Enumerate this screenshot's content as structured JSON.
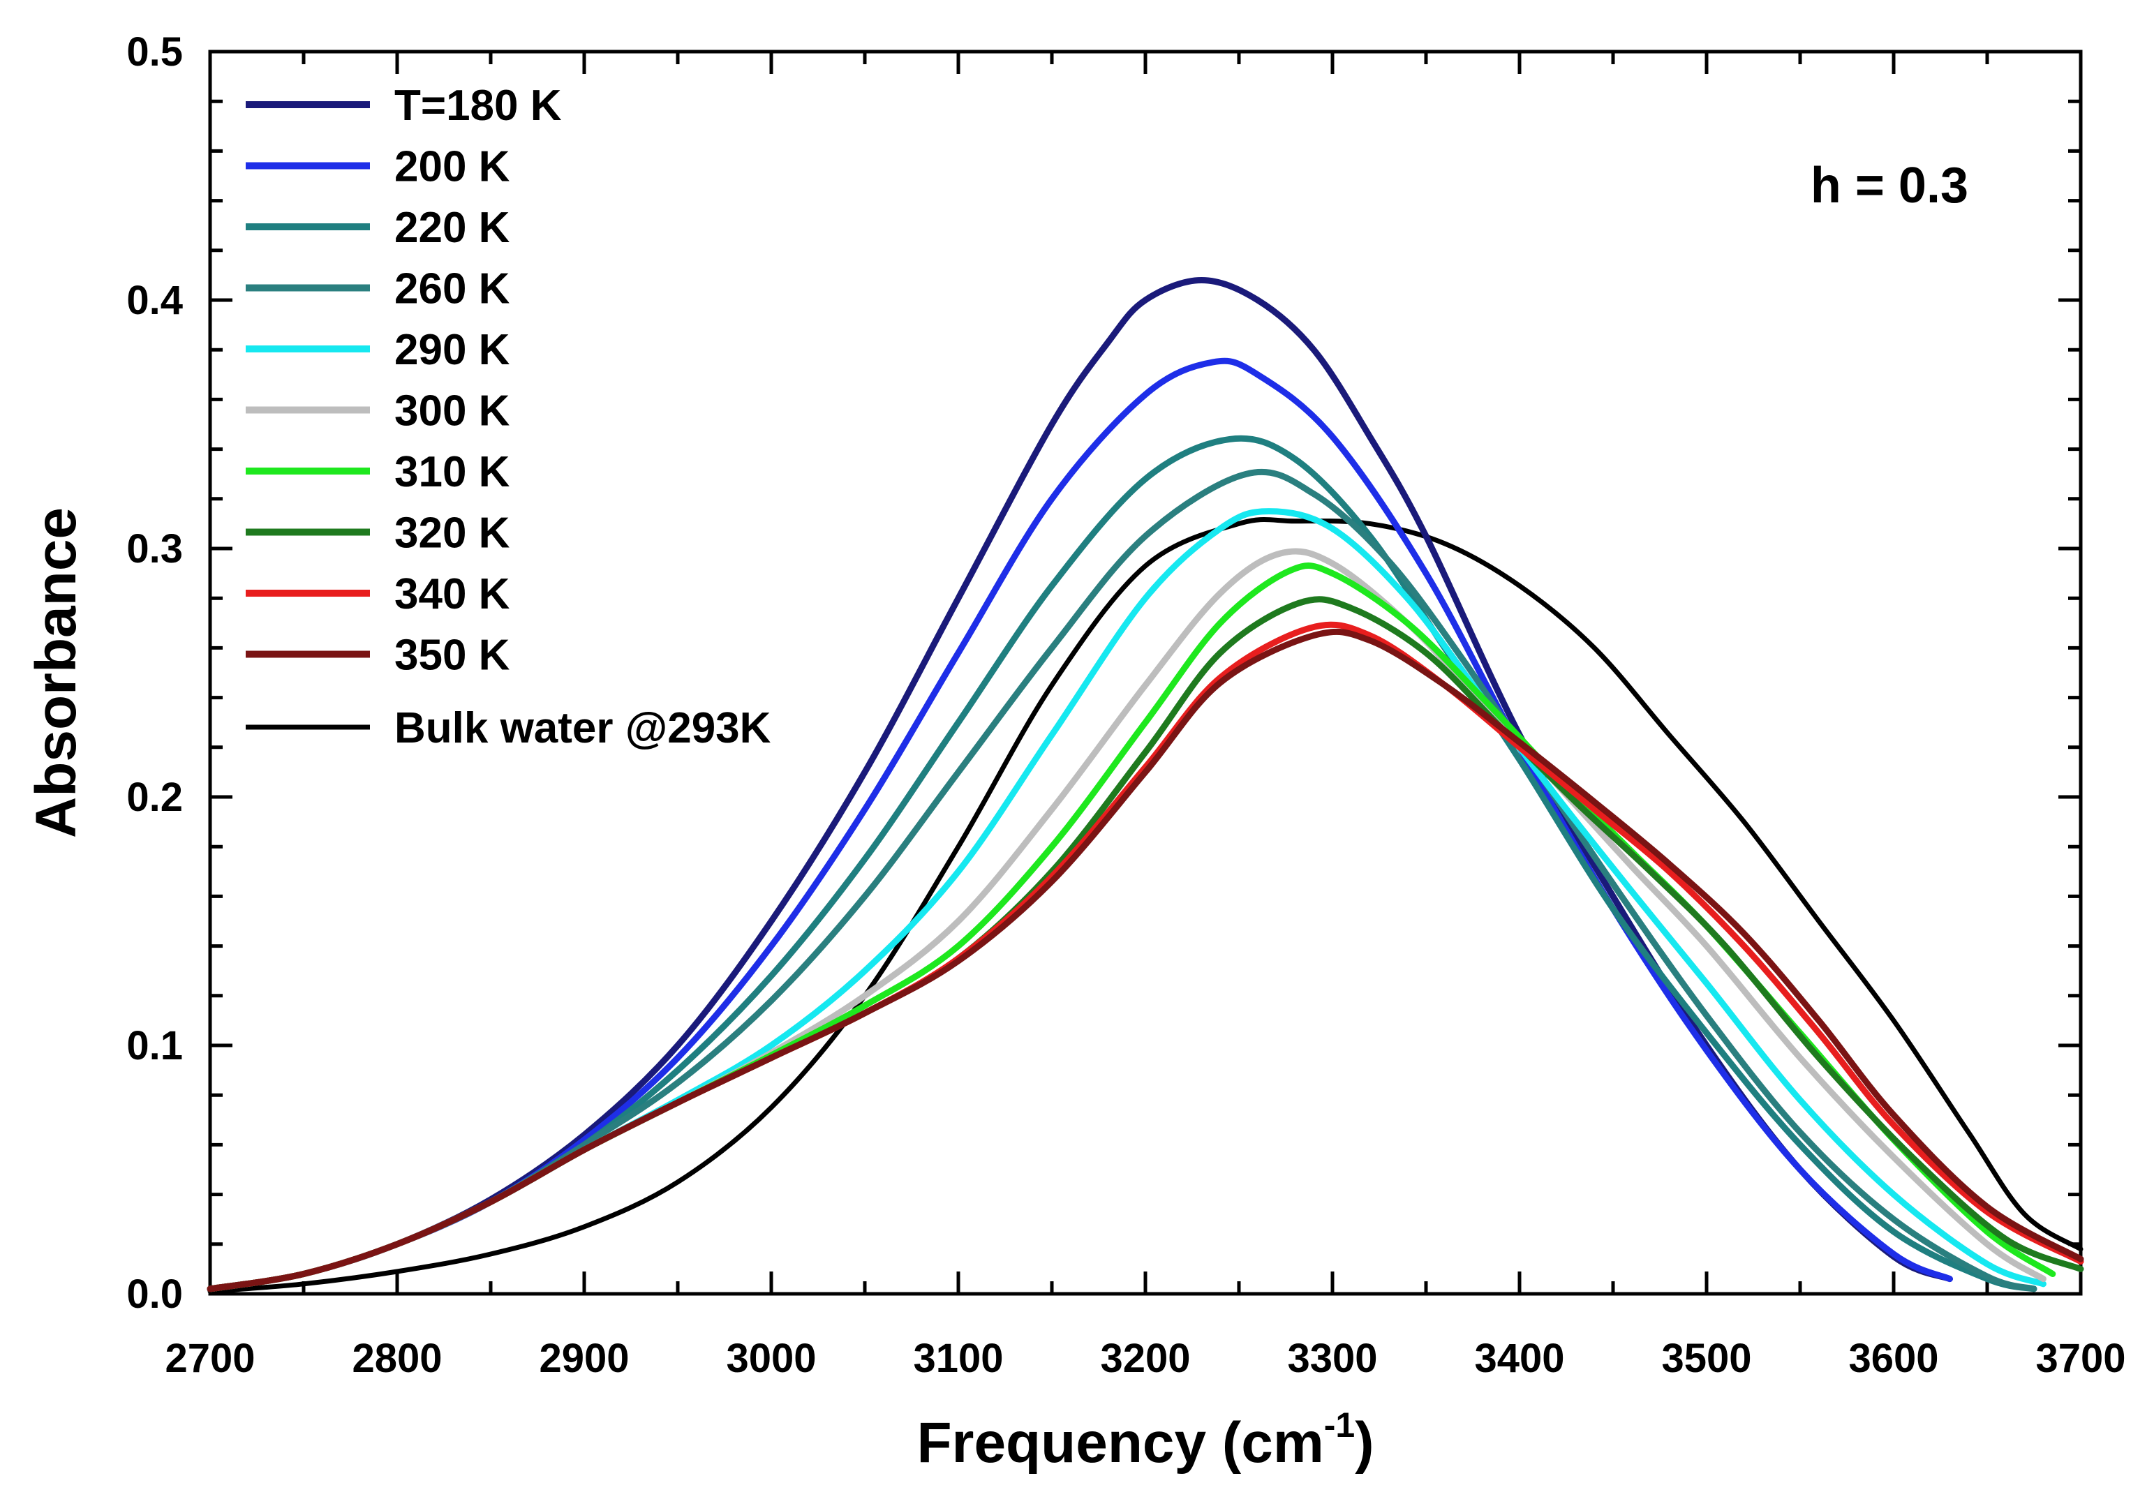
{
  "chart_data": {
    "type": "line",
    "title": "",
    "xlabel": "Frequency (cm",
    "xlabel_superscript": "-1",
    "xlabel_suffix": ")",
    "ylabel": "Absorbance",
    "xlim": [
      2700,
      3700
    ],
    "ylim": [
      0.0,
      0.5
    ],
    "xticks": [
      2700,
      2800,
      2900,
      3000,
      3100,
      3200,
      3300,
      3400,
      3500,
      3600,
      3700
    ],
    "xtick_labels": [
      "2700",
      "2800",
      "2900",
      "3000",
      "3100",
      "3200",
      "3300",
      "3400",
      "3500",
      "3600",
      "3700"
    ],
    "yticks": [
      0.0,
      0.1,
      0.2,
      0.3,
      0.4,
      0.5
    ],
    "ytick_labels": [
      "0.0",
      "0.1",
      "0.2",
      "0.3",
      "0.4",
      "0.5"
    ],
    "grid": false,
    "legend_position": "top-left",
    "annotation": "h = 0.3",
    "series": [
      {
        "name": "T=180 K",
        "color": "#1a1a7a",
        "x": [
          2700,
          2750,
          2800,
          2850,
          2900,
          2950,
          3000,
          3050,
          3100,
          3150,
          3180,
          3200,
          3230,
          3260,
          3290,
          3320,
          3350,
          3400,
          3450,
          3500,
          3550,
          3600,
          3630
        ],
        "y": [
          0.002,
          0.008,
          0.02,
          0.038,
          0.064,
          0.1,
          0.15,
          0.21,
          0.28,
          0.35,
          0.383,
          0.4,
          0.408,
          0.4,
          0.38,
          0.345,
          0.305,
          0.225,
          0.16,
          0.1,
          0.05,
          0.015,
          0.006
        ]
      },
      {
        "name": "200 K",
        "color": "#1e2ee8",
        "x": [
          2700,
          2750,
          2800,
          2850,
          2900,
          2950,
          3000,
          3050,
          3100,
          3150,
          3200,
          3236,
          3260,
          3300,
          3350,
          3400,
          3450,
          3500,
          3550,
          3600,
          3630
        ],
        "y": [
          0.002,
          0.008,
          0.02,
          0.037,
          0.062,
          0.095,
          0.14,
          0.195,
          0.258,
          0.32,
          0.362,
          0.375,
          0.37,
          0.345,
          0.29,
          0.22,
          0.155,
          0.098,
          0.05,
          0.016,
          0.006
        ]
      },
      {
        "name": "220 K",
        "color": "#1f7f80",
        "x": [
          2700,
          2750,
          2800,
          2850,
          2900,
          2950,
          3000,
          3050,
          3100,
          3150,
          3200,
          3245,
          3280,
          3320,
          3360,
          3400,
          3450,
          3500,
          3550,
          3600,
          3650,
          3675
        ],
        "y": [
          0.002,
          0.008,
          0.02,
          0.037,
          0.06,
          0.09,
          0.128,
          0.175,
          0.23,
          0.285,
          0.328,
          0.344,
          0.336,
          0.305,
          0.26,
          0.215,
          0.155,
          0.105,
          0.06,
          0.025,
          0.006,
          0.002
        ]
      },
      {
        "name": "260 K",
        "color": "#2a7f7f",
        "x": [
          2700,
          2750,
          2800,
          2850,
          2900,
          2950,
          3000,
          3050,
          3100,
          3150,
          3200,
          3254,
          3290,
          3330,
          3370,
          3410,
          3450,
          3500,
          3550,
          3600,
          3650,
          3675
        ],
        "y": [
          0.002,
          0.008,
          0.02,
          0.037,
          0.06,
          0.085,
          0.118,
          0.16,
          0.21,
          0.26,
          0.305,
          0.33,
          0.322,
          0.295,
          0.255,
          0.21,
          0.165,
          0.112,
          0.065,
          0.03,
          0.007,
          0.002
        ]
      },
      {
        "name": "290 K",
        "color": "#16e8f0",
        "x": [
          2700,
          2750,
          2800,
          2850,
          2900,
          2950,
          3000,
          3050,
          3100,
          3150,
          3200,
          3240,
          3266,
          3300,
          3340,
          3380,
          3420,
          3460,
          3500,
          3550,
          3600,
          3650,
          3680
        ],
        "y": [
          0.002,
          0.008,
          0.02,
          0.037,
          0.058,
          0.078,
          0.1,
          0.13,
          0.17,
          0.225,
          0.28,
          0.308,
          0.315,
          0.308,
          0.28,
          0.24,
          0.2,
          0.162,
          0.125,
          0.078,
          0.04,
          0.012,
          0.004
        ]
      },
      {
        "name": "300 K",
        "color": "#bdbdbd",
        "x": [
          2700,
          2750,
          2800,
          2850,
          2900,
          2950,
          3000,
          3050,
          3100,
          3150,
          3200,
          3240,
          3272,
          3300,
          3340,
          3380,
          3420,
          3460,
          3500,
          3550,
          3600,
          3650,
          3680
        ],
        "y": [
          0.002,
          0.008,
          0.02,
          0.037,
          0.058,
          0.077,
          0.097,
          0.12,
          0.15,
          0.195,
          0.245,
          0.282,
          0.298,
          0.294,
          0.27,
          0.238,
          0.205,
          0.172,
          0.14,
          0.095,
          0.055,
          0.02,
          0.006
        ]
      },
      {
        "name": "310 K",
        "color": "#1ee81e",
        "x": [
          2700,
          2750,
          2800,
          2850,
          2900,
          2950,
          3000,
          3050,
          3100,
          3150,
          3200,
          3240,
          3277,
          3300,
          3340,
          3380,
          3420,
          3460,
          3500,
          3550,
          3600,
          3650,
          3685
        ],
        "y": [
          0.002,
          0.008,
          0.02,
          0.037,
          0.058,
          0.077,
          0.096,
          0.116,
          0.14,
          0.18,
          0.23,
          0.27,
          0.291,
          0.29,
          0.27,
          0.24,
          0.208,
          0.178,
          0.148,
          0.105,
          0.062,
          0.025,
          0.008
        ]
      },
      {
        "name": "320 K",
        "color": "#1e7a1e",
        "x": [
          2700,
          2750,
          2800,
          2850,
          2900,
          2950,
          3000,
          3050,
          3100,
          3150,
          3200,
          3240,
          3282,
          3310,
          3350,
          3390,
          3430,
          3470,
          3510,
          3560,
          3610,
          3660,
          3700
        ],
        "y": [
          0.002,
          0.008,
          0.02,
          0.037,
          0.058,
          0.077,
          0.095,
          0.113,
          0.135,
          0.17,
          0.218,
          0.258,
          0.278,
          0.276,
          0.258,
          0.228,
          0.198,
          0.17,
          0.14,
          0.095,
          0.055,
          0.022,
          0.01
        ]
      },
      {
        "name": "340 K",
        "color": "#e81e1e",
        "x": [
          2700,
          2750,
          2800,
          2850,
          2900,
          2950,
          3000,
          3050,
          3100,
          3150,
          3200,
          3240,
          3288,
          3320,
          3360,
          3400,
          3440,
          3480,
          3520,
          3560,
          3600,
          3650,
          3700
        ],
        "y": [
          0.002,
          0.008,
          0.02,
          0.037,
          0.058,
          0.077,
          0.095,
          0.113,
          0.135,
          0.168,
          0.212,
          0.248,
          0.268,
          0.265,
          0.245,
          0.22,
          0.195,
          0.17,
          0.14,
          0.105,
          0.068,
          0.033,
          0.013
        ]
      },
      {
        "name": "350 K",
        "color": "#7a1414",
        "x": [
          2700,
          2750,
          2800,
          2850,
          2900,
          2950,
          3000,
          3050,
          3100,
          3150,
          3200,
          3240,
          3290,
          3320,
          3360,
          3400,
          3440,
          3480,
          3520,
          3560,
          3600,
          3650,
          3700
        ],
        "y": [
          0.002,
          0.008,
          0.02,
          0.037,
          0.058,
          0.077,
          0.095,
          0.113,
          0.134,
          0.166,
          0.21,
          0.246,
          0.265,
          0.263,
          0.245,
          0.222,
          0.198,
          0.173,
          0.145,
          0.11,
          0.072,
          0.035,
          0.014
        ]
      },
      {
        "name": "Bulk water @293K",
        "color": "#000000",
        "x": [
          2700,
          2750,
          2800,
          2850,
          2900,
          2950,
          3000,
          3050,
          3100,
          3150,
          3200,
          3250,
          3280,
          3320,
          3360,
          3400,
          3440,
          3480,
          3520,
          3560,
          3600,
          3640,
          3670,
          3700
        ],
        "y": [
          0.001,
          0.004,
          0.009,
          0.016,
          0.027,
          0.045,
          0.075,
          0.12,
          0.18,
          0.245,
          0.293,
          0.31,
          0.311,
          0.31,
          0.302,
          0.285,
          0.26,
          0.225,
          0.19,
          0.15,
          0.11,
          0.065,
          0.032,
          0.018
        ]
      }
    ]
  }
}
